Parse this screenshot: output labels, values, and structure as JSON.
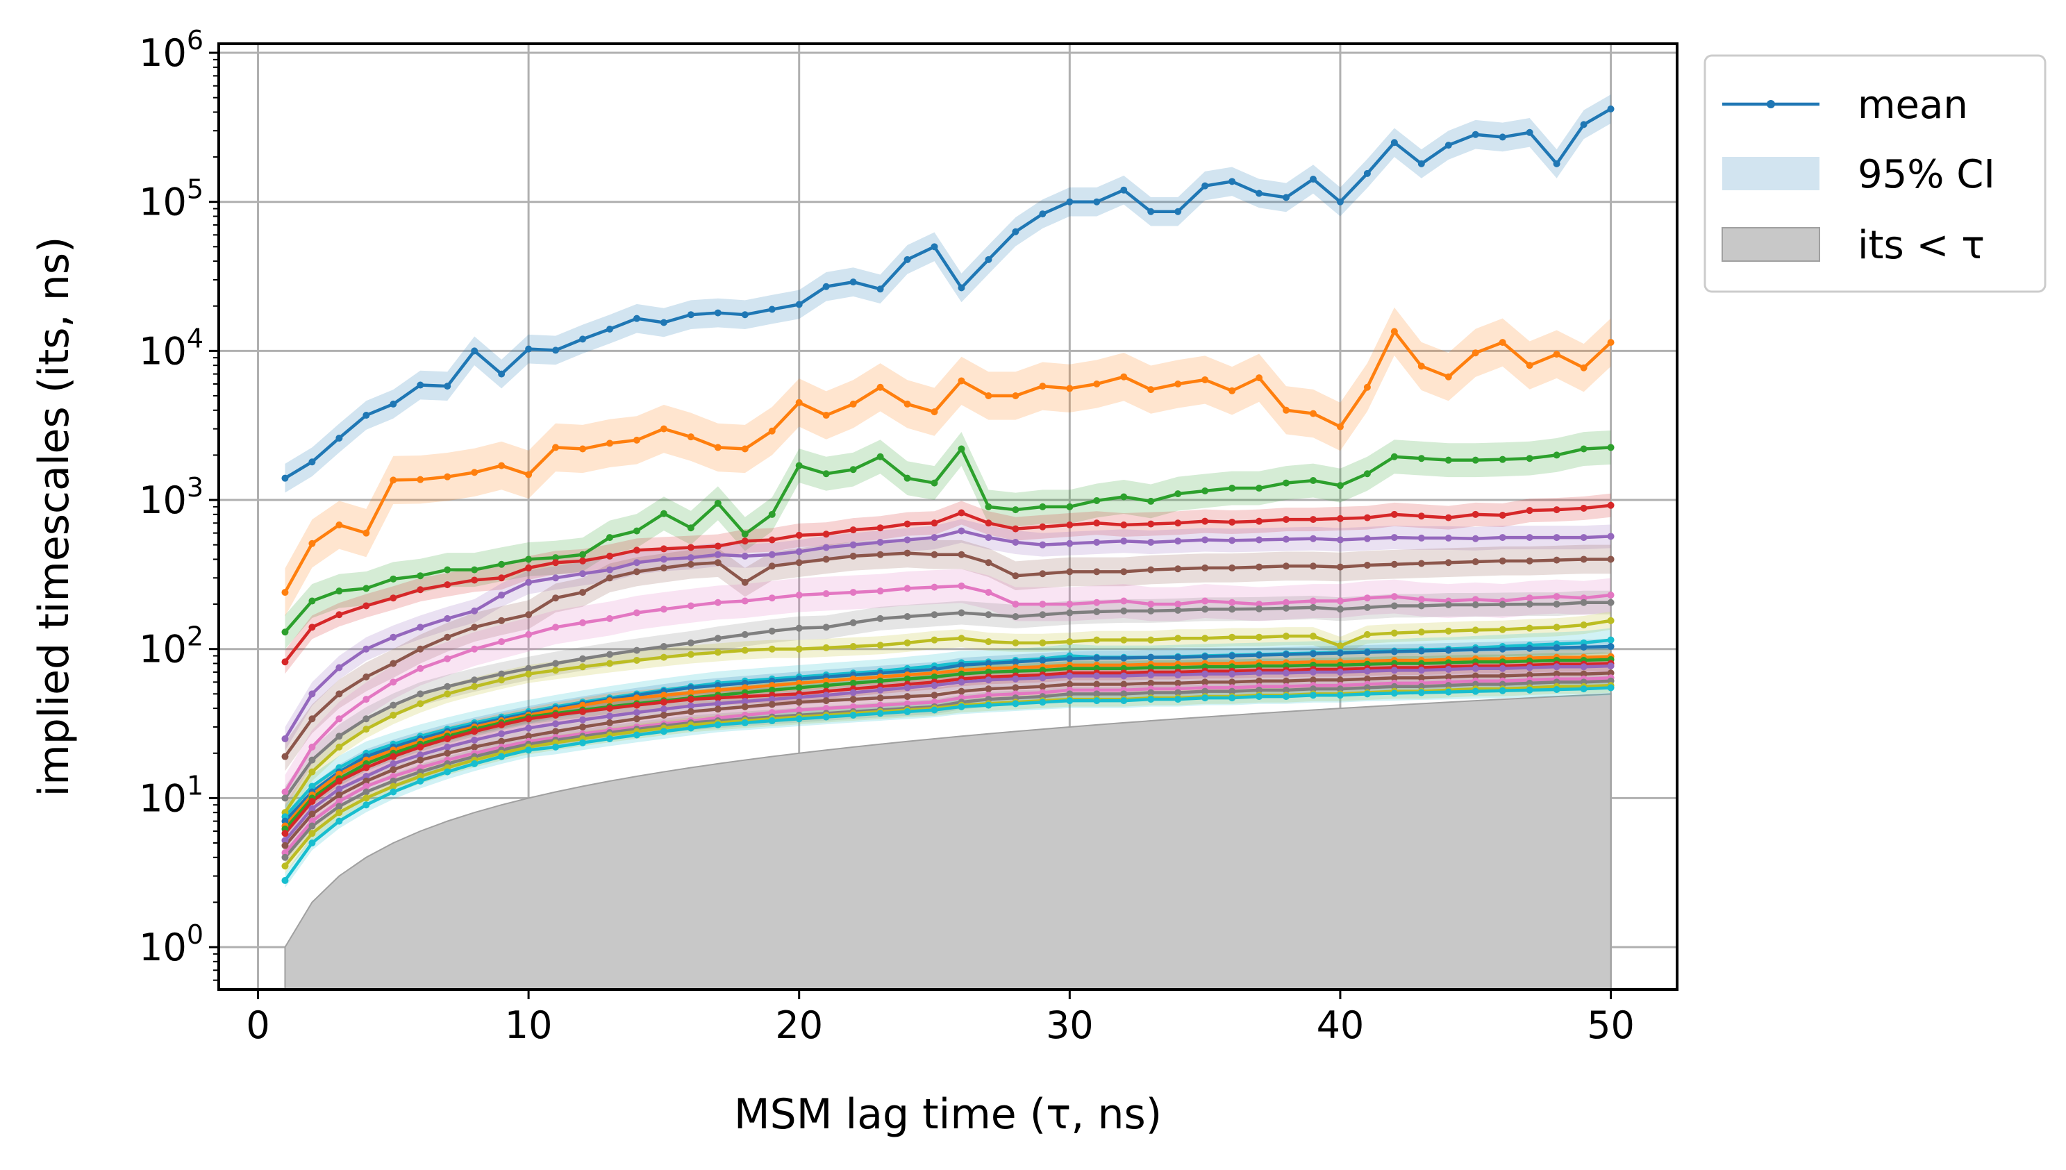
{
  "chart_data": {
    "type": "line",
    "xlabel": "MSM lag time (τ, ns)",
    "ylabel": "implied timescales (its, ns)",
    "yscale": "log",
    "xlim": [
      -1.45,
      52.45
    ],
    "ylim": [
      0.52,
      1150000
    ],
    "grid": true,
    "legend_position": "outside-top-right",
    "legend": [
      {
        "label": "mean",
        "kind": "line-marker",
        "color": "#1f77b4"
      },
      {
        "label": "95% CI",
        "kind": "band",
        "color": "#1f77b4"
      },
      {
        "label": "its < τ",
        "kind": "area",
        "color": "#c8c8c8"
      }
    ],
    "x_ticks": [
      0,
      10,
      20,
      30,
      40,
      50
    ],
    "x_tick_labels": [
      "0",
      "10",
      "20",
      "30",
      "40",
      "50"
    ],
    "y_ticks": [
      1,
      10,
      100,
      1000,
      10000,
      100000,
      1000000
    ],
    "y_tick_labels": [
      {
        "base": "10",
        "exp": "0"
      },
      {
        "base": "10",
        "exp": "1"
      },
      {
        "base": "10",
        "exp": "2"
      },
      {
        "base": "10",
        "exp": "3"
      },
      {
        "base": "10",
        "exp": "4"
      },
      {
        "base": "10",
        "exp": "5"
      },
      {
        "base": "10",
        "exp": "6"
      }
    ],
    "x": [
      1,
      2,
      3,
      4,
      5,
      6,
      7,
      8,
      9,
      10,
      11,
      12,
      13,
      14,
      15,
      16,
      17,
      18,
      19,
      20,
      21,
      22,
      23,
      24,
      25,
      26,
      27,
      28,
      29,
      30,
      31,
      32,
      33,
      34,
      35,
      36,
      37,
      38,
      39,
      40,
      41,
      42,
      43,
      44,
      45,
      46,
      47,
      48,
      49,
      50
    ],
    "shaded_region": {
      "label": "its < τ",
      "y_equals_x": true,
      "color": "#c8c8c8"
    },
    "series": [
      {
        "color": "#1f77b4",
        "ci_rel": 0.25,
        "values": [
          1400,
          1800,
          2600,
          3700,
          4400,
          5900,
          5800,
          10000,
          7000,
          10300,
          10100,
          12000,
          14000,
          16500,
          15500,
          17500,
          18000,
          17500,
          19000,
          20500,
          27000,
          29000,
          26000,
          41000,
          50000,
          26500,
          41000,
          63000,
          83000,
          100000,
          100000,
          120000,
          86000,
          86000,
          128000,
          137000,
          114000,
          107000,
          142000,
          100000,
          155000,
          250000,
          180000,
          240000,
          283000,
          272000,
          292000,
          180000,
          330000,
          420000
        ]
      },
      {
        "color": "#ff7f0e",
        "ci_rel": 0.45,
        "values": [
          240,
          510,
          680,
          600,
          1360,
          1370,
          1430,
          1530,
          1700,
          1480,
          2250,
          2200,
          2400,
          2520,
          3000,
          2650,
          2250,
          2200,
          2900,
          4500,
          3700,
          4400,
          5700,
          4400,
          3900,
          6300,
          5000,
          5000,
          5800,
          5600,
          6000,
          6700,
          5500,
          6000,
          6400,
          5400,
          6600,
          4000,
          3800,
          3100,
          5700,
          13500,
          7900,
          6700,
          9700,
          11400,
          8000,
          9500,
          7700,
          11400
        ]
      },
      {
        "color": "#2ca02c",
        "ci_rel": 0.3,
        "values": [
          130,
          210,
          245,
          255,
          295,
          310,
          340,
          340,
          370,
          400,
          410,
          430,
          560,
          620,
          810,
          650,
          950,
          590,
          800,
          1700,
          1500,
          1600,
          1950,
          1400,
          1300,
          2200,
          900,
          860,
          900,
          900,
          990,
          1050,
          980,
          1100,
          1150,
          1200,
          1200,
          1300,
          1350,
          1250,
          1500,
          1950,
          1900,
          1850,
          1850,
          1870,
          1900,
          2000,
          2200,
          2250
        ]
      },
      {
        "color": "#d62728",
        "ci_rel": 0.2,
        "values": [
          82,
          140,
          170,
          195,
          220,
          250,
          270,
          290,
          300,
          350,
          380,
          390,
          420,
          460,
          470,
          480,
          490,
          530,
          540,
          580,
          590,
          630,
          650,
          690,
          700,
          820,
          700,
          640,
          660,
          680,
          700,
          680,
          690,
          700,
          720,
          710,
          720,
          740,
          740,
          750,
          760,
          800,
          780,
          760,
          800,
          790,
          850,
          860,
          880,
          920
        ]
      },
      {
        "color": "#9467bd",
        "ci_rel": 0.2,
        "values": [
          25,
          50,
          75,
          100,
          120,
          140,
          160,
          180,
          230,
          280,
          300,
          320,
          340,
          380,
          400,
          410,
          430,
          420,
          430,
          450,
          480,
          500,
          520,
          540,
          560,
          620,
          560,
          520,
          500,
          510,
          520,
          530,
          520,
          530,
          540,
          535,
          540,
          545,
          550,
          540,
          550,
          560,
          555,
          555,
          550,
          560,
          560,
          560,
          560,
          570
        ]
      },
      {
        "color": "#8c564b",
        "ci_rel": 0.25,
        "values": [
          19,
          34,
          50,
          65,
          80,
          100,
          120,
          140,
          155,
          170,
          220,
          240,
          300,
          330,
          350,
          370,
          380,
          280,
          360,
          380,
          400,
          420,
          430,
          440,
          430,
          430,
          380,
          310,
          320,
          330,
          330,
          330,
          340,
          345,
          350,
          350,
          355,
          360,
          360,
          355,
          365,
          370,
          375,
          380,
          385,
          390,
          390,
          395,
          400,
          400
        ]
      },
      {
        "color": "#e377c2",
        "ci_rel": 0.3,
        "values": [
          11,
          22,
          34,
          46,
          60,
          74,
          86,
          100,
          112,
          125,
          140,
          150,
          160,
          175,
          185,
          195,
          205,
          210,
          220,
          230,
          235,
          240,
          245,
          255,
          260,
          265,
          240,
          200,
          200,
          200,
          205,
          210,
          200,
          200,
          210,
          205,
          200,
          205,
          210,
          210,
          220,
          225,
          215,
          210,
          215,
          210,
          220,
          225,
          220,
          230
        ]
      },
      {
        "color": "#7f7f7f",
        "ci_rel": 0.2,
        "values": [
          10,
          18,
          26,
          34,
          42,
          50,
          56,
          62,
          68,
          74,
          80,
          86,
          92,
          98,
          104,
          110,
          118,
          125,
          132,
          138,
          140,
          150,
          160,
          165,
          170,
          175,
          170,
          165,
          170,
          175,
          178,
          180,
          180,
          182,
          185,
          185,
          186,
          188,
          190,
          185,
          190,
          195,
          195,
          198,
          198,
          199,
          200,
          200,
          205,
          205
        ]
      },
      {
        "color": "#bcbd22",
        "ci_rel": 0.15,
        "values": [
          8,
          15,
          22,
          29,
          36,
          43,
          50,
          56,
          62,
          68,
          72,
          76,
          80,
          84,
          88,
          92,
          95,
          98,
          100,
          100,
          102,
          104,
          106,
          110,
          115,
          118,
          112,
          110,
          110,
          112,
          115,
          115,
          115,
          118,
          118,
          120,
          120,
          122,
          122,
          105,
          125,
          128,
          130,
          132,
          134,
          135,
          138,
          140,
          145,
          155
        ]
      },
      {
        "color": "#17becf",
        "ci_rel": 0.2,
        "values": [
          7.5,
          12,
          16,
          20,
          23,
          26,
          29,
          32,
          35,
          38,
          41,
          44,
          47,
          50,
          53,
          56,
          59,
          61,
          63,
          65,
          67,
          69,
          71,
          74,
          77,
          81,
          82,
          84,
          86,
          90,
          88,
          88,
          88,
          89,
          90,
          91,
          92,
          93,
          94,
          95,
          96,
          97,
          99,
          100,
          102,
          104,
          106,
          108,
          110,
          115
        ]
      },
      {
        "color": "#1f77b4",
        "ci_rel": 0.12,
        "values": [
          7,
          11,
          15,
          19,
          22,
          25,
          28,
          31,
          34,
          37,
          40,
          43,
          46,
          49,
          52,
          55,
          57,
          59,
          61,
          63,
          65,
          67,
          69,
          71,
          73,
          78,
          80,
          82,
          84,
          86,
          87,
          87,
          88,
          88,
          89,
          90,
          91,
          92,
          93,
          94,
          95,
          96,
          97,
          98,
          99,
          100,
          101,
          102,
          103,
          104
        ]
      },
      {
        "color": "#ff7f0e",
        "ci_rel": 0.12,
        "values": [
          6.5,
          10.5,
          14.5,
          18,
          21,
          24,
          27,
          30,
          33,
          36,
          39,
          42,
          45,
          47,
          49,
          51,
          53,
          55,
          57,
          59,
          61,
          63,
          65,
          67,
          69,
          72,
          74,
          75,
          76,
          78,
          78,
          78,
          79,
          79,
          80,
          80,
          81,
          81,
          82,
          82,
          83,
          84,
          84,
          85,
          86,
          86,
          87,
          88,
          88,
          89
        ]
      },
      {
        "color": "#2ca02c",
        "ci_rel": 0.12,
        "values": [
          6.2,
          10,
          13.5,
          17,
          20,
          23,
          26,
          29,
          32,
          35,
          37,
          39,
          41,
          43,
          45,
          47,
          49,
          51,
          53,
          55,
          57,
          59,
          61,
          63,
          65,
          68,
          70,
          71,
          72,
          74,
          74,
          74,
          75,
          75,
          76,
          76,
          77,
          77,
          78,
          78,
          79,
          80,
          80,
          81,
          82,
          82,
          83,
          84,
          84,
          85
        ]
      },
      {
        "color": "#d62728",
        "ci_rel": 0.12,
        "values": [
          5.8,
          9.5,
          13,
          16,
          19,
          22,
          25,
          28,
          31,
          34,
          36,
          38,
          40,
          42,
          44,
          46,
          47,
          48,
          49,
          50,
          52,
          54,
          56,
          58,
          60,
          63,
          65,
          66,
          67,
          69,
          69,
          69,
          70,
          70,
          71,
          71,
          72,
          72,
          73,
          73,
          74,
          75,
          75,
          76,
          77,
          77,
          78,
          79,
          79,
          80
        ]
      },
      {
        "color": "#9467bd",
        "ci_rel": 0.12,
        "values": [
          5.2,
          8.5,
          11.5,
          14,
          17,
          19.5,
          22,
          24.5,
          27,
          29.5,
          31.5,
          33.5,
          35.5,
          37.5,
          39.5,
          41.5,
          43,
          44.5,
          46,
          47.5,
          49,
          51,
          53,
          55,
          57,
          60,
          62,
          63,
          64,
          66,
          66,
          66,
          67,
          67,
          68,
          68,
          69,
          69,
          70,
          70,
          71,
          72,
          72,
          73,
          74,
          74,
          75,
          76,
          76,
          77
        ]
      },
      {
        "color": "#8c564b",
        "ci_rel": 0.12,
        "values": [
          4.8,
          7.8,
          10.5,
          13,
          15.5,
          18,
          20,
          22,
          24,
          26,
          28,
          30,
          32,
          34,
          36,
          38,
          39.5,
          41,
          42.5,
          44,
          45,
          46,
          47,
          48,
          49,
          52,
          54,
          55,
          56,
          58,
          58,
          58,
          59,
          59,
          60,
          60,
          61,
          61,
          62,
          62,
          63,
          64,
          64,
          65,
          66,
          66,
          67,
          68,
          68,
          69
        ]
      },
      {
        "color": "#e377c2",
        "ci_rel": 0.12,
        "values": [
          4.3,
          7,
          9.5,
          12,
          14,
          16,
          18,
          20,
          22,
          24,
          25.5,
          27,
          28.5,
          30,
          31.5,
          33,
          34.5,
          36,
          37.5,
          39,
          40,
          41,
          42,
          43,
          44,
          47,
          49,
          50,
          51,
          53,
          53,
          53,
          54,
          54,
          55,
          55,
          56,
          56,
          57,
          57,
          58,
          59,
          59,
          60,
          61,
          61,
          62,
          63,
          63,
          64
        ]
      },
      {
        "color": "#7f7f7f",
        "ci_rel": 0.12,
        "values": [
          4,
          6.5,
          8.8,
          11,
          13,
          15,
          17,
          19,
          21,
          23,
          24.5,
          26,
          27.5,
          29,
          30.5,
          32,
          33,
          34,
          35,
          36,
          37,
          38,
          39,
          40,
          41,
          44,
          46,
          47,
          48,
          50,
          50,
          50,
          51,
          51,
          52,
          52,
          53,
          53,
          54,
          54,
          55,
          56,
          56,
          57,
          58,
          58,
          59,
          60,
          60,
          61
        ]
      },
      {
        "color": "#bcbd22",
        "ci_rel": 0.12,
        "values": [
          3.5,
          5.8,
          8,
          10,
          12,
          14,
          16,
          18,
          20,
          22,
          23.5,
          25,
          26.5,
          28,
          29.5,
          31,
          32,
          33,
          34,
          35,
          36,
          37,
          38,
          39,
          40,
          42,
          43,
          44,
          45,
          46,
          46,
          46,
          47,
          47,
          48,
          48,
          49,
          49,
          50,
          50,
          51,
          52,
          52,
          53,
          54,
          54,
          55,
          56,
          56,
          57
        ]
      },
      {
        "color": "#17becf",
        "ci_rel": 0.12,
        "values": [
          2.8,
          5,
          7,
          9,
          11,
          13,
          15,
          17,
          19,
          21,
          22,
          23.5,
          25,
          26.5,
          28,
          29.5,
          31,
          32,
          33,
          34,
          35,
          36,
          37,
          38,
          39,
          41,
          42,
          43,
          44,
          45,
          45,
          45,
          46,
          46,
          47,
          47,
          48,
          48,
          49,
          49,
          50,
          50.5,
          51,
          51.5,
          52,
          52.5,
          53,
          53.5,
          54,
          55
        ]
      }
    ]
  }
}
